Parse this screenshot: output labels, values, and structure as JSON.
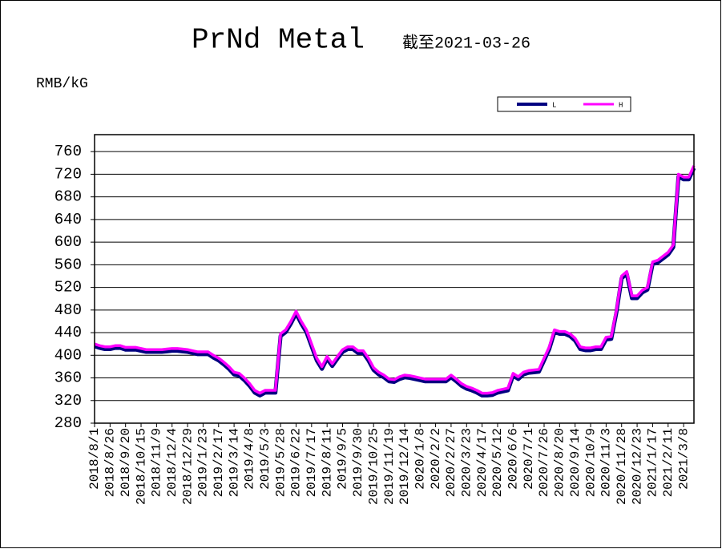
{
  "chart_data": {
    "type": "line",
    "title": "PrNd Metal",
    "subtitle": "截至2021-03-26",
    "y_label": "RMB/kG",
    "categories": [
      "2018/8/1",
      null,
      null,
      "2018/8/26",
      null,
      null,
      "2018/9/20",
      null,
      null,
      "2018/10/15",
      null,
      null,
      "2018/11/9",
      null,
      null,
      "2018/12/4",
      null,
      null,
      "2018/12/29",
      null,
      null,
      "2019/1/23",
      null,
      null,
      "2019/2/17",
      null,
      null,
      "2019/3/14",
      null,
      null,
      "2019/4/8",
      null,
      null,
      "2019/5/3",
      null,
      null,
      "2019/5/28",
      null,
      null,
      "2019/6/22",
      null,
      null,
      "2019/7/17",
      null,
      null,
      "2019/8/11",
      null,
      null,
      "2019/9/5",
      null,
      null,
      "2019/9/30",
      null,
      null,
      "2019/10/25",
      null,
      null,
      "2019/11/19",
      null,
      null,
      "2019/12/14",
      null,
      null,
      "2020/1/8",
      null,
      null,
      "2020/2/2",
      null,
      null,
      "2020/2/27",
      null,
      null,
      "2020/3/23",
      null,
      null,
      "2020/4/17",
      null,
      null,
      "2020/5/12",
      null,
      null,
      "2020/6/6",
      null,
      null,
      "2020/7/1",
      null,
      null,
      "2020/7/26",
      null,
      null,
      "2020/8/20",
      null,
      null,
      "2020/9/14",
      null,
      null,
      "2020/10/9",
      null,
      null,
      "2020/11/3",
      null,
      null,
      "2020/11/28",
      null,
      null,
      "2020/12/23",
      null,
      null,
      "2021/1/17",
      null,
      null,
      "2021/2/11",
      null,
      null,
      "2021/3/8",
      null,
      null
    ],
    "series": [
      {
        "name": "L",
        "color": "#000080",
        "values": [
          416,
          413,
          411,
          411,
          413,
          413,
          410,
          410,
          410,
          408,
          406,
          406,
          406,
          406,
          407,
          408,
          408,
          407,
          406,
          404,
          402,
          402,
          402,
          396,
          391,
          384,
          376,
          366,
          364,
          356,
          346,
          334,
          329,
          334,
          334,
          334,
          434,
          441,
          456,
          474,
          456,
          441,
          416,
          391,
          376,
          394,
          381,
          394,
          406,
          411,
          411,
          404,
          404,
          391,
          374,
          366,
          361,
          354,
          353,
          358,
          361,
          360,
          358,
          356,
          354,
          354,
          354,
          354,
          354,
          361,
          354,
          346,
          341,
          338,
          334,
          329,
          329,
          330,
          334,
          336,
          338,
          364,
          358,
          366,
          369,
          370,
          371,
          391,
          411,
          441,
          438,
          438,
          434,
          426,
          411,
          409,
          409,
          411,
          411,
          428,
          429,
          476,
          536,
          544,
          501,
          501,
          511,
          516,
          561,
          564,
          571,
          578,
          591,
          716,
          711,
          711,
          731
        ]
      },
      {
        "name": "H",
        "color": "#ff00ff",
        "values": [
          420,
          417,
          415,
          415,
          417,
          417,
          414,
          414,
          414,
          412,
          410,
          410,
          410,
          410,
          411,
          412,
          412,
          411,
          410,
          408,
          406,
          406,
          406,
          400,
          395,
          388,
          380,
          370,
          368,
          360,
          350,
          338,
          333,
          338,
          338,
          338,
          438,
          445,
          460,
          478,
          460,
          445,
          420,
          395,
          380,
          398,
          385,
          398,
          410,
          415,
          415,
          408,
          408,
          395,
          378,
          370,
          365,
          358,
          357,
          362,
          365,
          364,
          362,
          360,
          358,
          358,
          358,
          358,
          358,
          365,
          358,
          350,
          345,
          342,
          338,
          333,
          333,
          334,
          338,
          340,
          342,
          368,
          362,
          370,
          373,
          374,
          375,
          395,
          415,
          445,
          442,
          442,
          438,
          430,
          415,
          413,
          413,
          415,
          415,
          432,
          433,
          480,
          540,
          548,
          505,
          505,
          515,
          520,
          565,
          568,
          575,
          582,
          595,
          720,
          715,
          715,
          735
        ]
      }
    ],
    "ylim": [
      280,
      790
    ],
    "yticks": [
      280,
      320,
      360,
      400,
      440,
      480,
      520,
      560,
      600,
      640,
      680,
      720,
      760
    ],
    "grid": true,
    "legend": "top-right"
  }
}
